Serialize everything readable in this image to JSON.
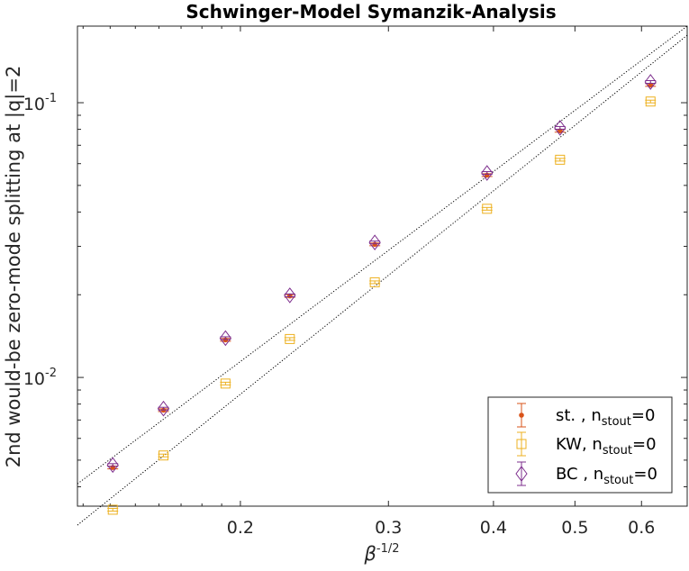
{
  "chart_data": {
    "type": "scatter",
    "title": "Schwinger-Model Symanzik-Analysis",
    "xlabel_base": "β",
    "xlabel_exp": "-1/2",
    "ylabel": "2nd would-be zero-mode splitting at |q|=2",
    "xscale": "log",
    "yscale": "log",
    "xlim": [
      0.128,
      0.68
    ],
    "ylim": [
      0.0034,
      0.19
    ],
    "xticks": [
      {
        "value": 0.2,
        "label": "0.2"
      },
      {
        "value": 0.3,
        "label": "0.3"
      },
      {
        "value": 0.4,
        "label": "0.4"
      },
      {
        "value": 0.5,
        "label": "0.5"
      },
      {
        "value": 0.6,
        "label": "0.6"
      }
    ],
    "yticks": [
      {
        "value": 0.01,
        "base": "10",
        "exp": "-2"
      },
      {
        "value": 0.1,
        "base": "10",
        "exp": "-1"
      }
    ],
    "x": [
      0.141,
      0.162,
      0.192,
      0.229,
      0.289,
      0.393,
      0.48,
      0.615
    ],
    "series": [
      {
        "key": "st",
        "name": "st. , n",
        "name_sub": "stout",
        "name_tail": "=0",
        "marker": "dot",
        "color": "#d95319",
        "values": [
          0.0047,
          0.0076,
          0.0137,
          0.0198,
          0.0305,
          0.0545,
          0.079,
          0.116
        ]
      },
      {
        "key": "kw",
        "name": "KW, n",
        "name_sub": "stout",
        "name_tail": "=0",
        "marker": "square",
        "color": "#edb120",
        "values": [
          0.0033,
          0.0052,
          0.0095,
          0.0138,
          0.0222,
          0.0411,
          0.062,
          0.101
        ]
      },
      {
        "key": "bc",
        "name": "BC , n",
        "name_sub": "stout",
        "name_tail": "=0",
        "marker": "diamond",
        "color": "#7e2f8e",
        "values": [
          0.0048,
          0.0077,
          0.0139,
          0.0199,
          0.031,
          0.0555,
          0.081,
          0.119
        ]
      }
    ],
    "fit_lines": [
      {
        "key": "fit-upper",
        "x": [
          0.128,
          0.68
        ],
        "y": [
          0.0041,
          0.19
        ]
      },
      {
        "key": "fit-lower",
        "x": [
          0.128,
          0.68
        ],
        "y": [
          0.0029,
          0.176
        ]
      }
    ],
    "grid": false,
    "legend_position": "bottom-right"
  }
}
